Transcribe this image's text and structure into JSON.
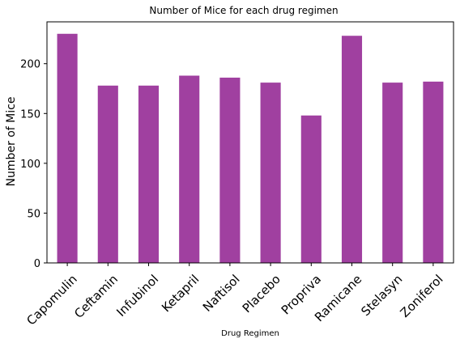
{
  "chart_data": {
    "type": "bar",
    "title": "Number of Mice  for each drug regimen",
    "xlabel": "Drug Regimen",
    "ylabel": "Number of Mice",
    "categories": [
      "Capomulin",
      "Ceftamin",
      "Infubinol",
      "Ketapril",
      "Naftisol",
      "Placebo",
      "Propriva",
      "Ramicane",
      "Stelasyn",
      "Zoniferol"
    ],
    "values": [
      230,
      178,
      178,
      188,
      186,
      181,
      148,
      228,
      181,
      182
    ],
    "ylim": [
      0,
      242
    ],
    "yticks": [
      0,
      50,
      100,
      150,
      200
    ],
    "bar_color": "#a040a0",
    "grid": false,
    "legend": "none"
  }
}
